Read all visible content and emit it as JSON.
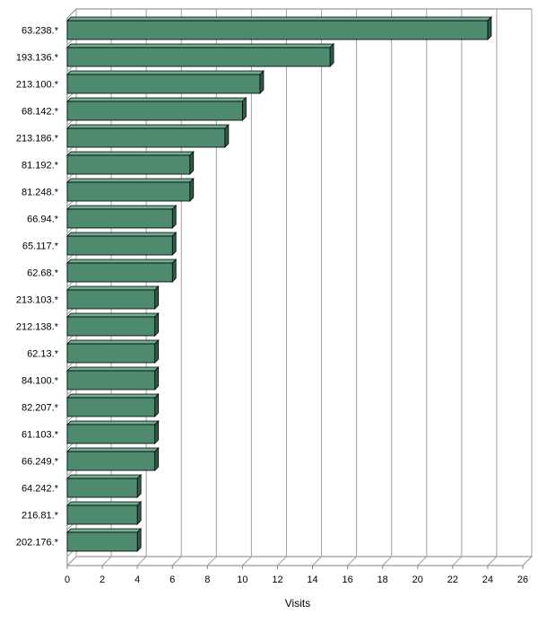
{
  "chart_data": {
    "type": "bar",
    "orientation": "horizontal",
    "bar_style": "3d",
    "categories": [
      "63.238.*",
      "193.136.*",
      "213.100.*",
      "68.142.*",
      "213.186.*",
      "81.192.*",
      "81.248.*",
      "66.94.*",
      "65.117.*",
      "62.68.*",
      "213.103.*",
      "212.138.*",
      "62.13.*",
      "84.100.*",
      "82.207.*",
      "61.103.*",
      "66.249.*",
      "64.242.*",
      "216.81.*",
      "202.176.*"
    ],
    "values": [
      24,
      15,
      11,
      10,
      9,
      7,
      7,
      6,
      6,
      6,
      5,
      5,
      5,
      5,
      5,
      5,
      5,
      4,
      4,
      4
    ],
    "xlabel": "Visits",
    "xlim": [
      0,
      26
    ],
    "xticks": [
      0,
      2,
      4,
      6,
      8,
      10,
      12,
      14,
      16,
      18,
      20,
      22,
      24,
      26
    ],
    "grid": true,
    "legend": false,
    "colors": {
      "bar_front": "#4e8a6e",
      "bar_top": "#6fae90",
      "bar_side": "#2f5e48",
      "bar_outline": "#000000",
      "grid": "#a0a0a0",
      "wall": "#ffffff",
      "axis": "#808080"
    }
  }
}
